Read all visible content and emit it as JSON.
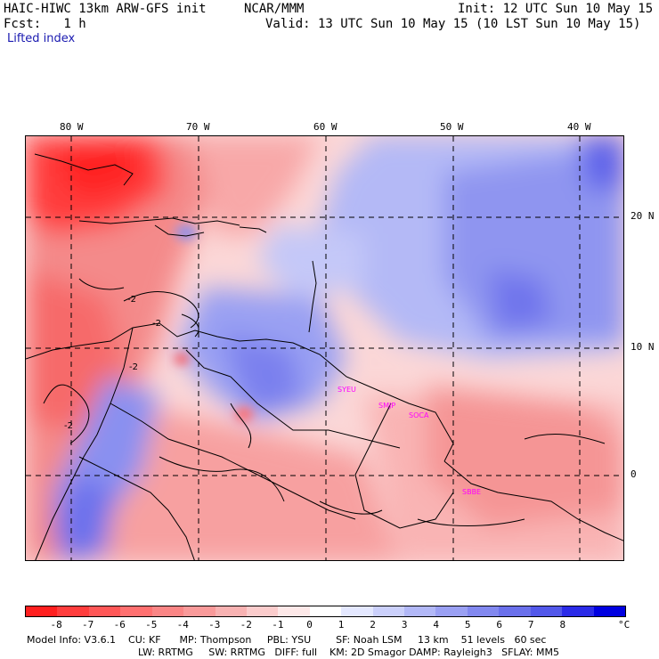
{
  "header": {
    "model_title": "HAIC-HIWC 13km ARW-GFS init",
    "org": "NCAR/MMM",
    "init_time": "Init: 12 UTC Sun 10 May 15",
    "fcst": "Fcst:   1 h",
    "valid_time": "Valid: 13 UTC Sun 10 May 15 (10 LST Sun 10 May 15)",
    "field_name": "Lifted index"
  },
  "map": {
    "lon_labels": [
      "80 W",
      "70 W",
      "60 W",
      "50 W",
      "40 W"
    ],
    "lat_labels": [
      "20 N",
      "10 N",
      "0"
    ],
    "contour_labels": [
      "-2",
      "-2",
      "-2",
      "-2"
    ],
    "station_labels": [
      "SYEU",
      "SMJP",
      "SOCA",
      "SBBE"
    ],
    "colors": {
      "strong_neg": "#ff2a2a",
      "neg": "#f89a9a",
      "near_zero": "#fde6e6",
      "pos": "#aab2f5",
      "strong_pos": "#6f72ee",
      "station_label": "#ff00ff",
      "contour": "#000000"
    }
  },
  "colorbar": {
    "unit": "°C",
    "ticks": [
      "-8",
      "-7",
      "-6",
      "-5",
      "-4",
      "-3",
      "-2",
      "-1",
      "0",
      "1",
      "2",
      "3",
      "4",
      "5",
      "6",
      "7",
      "8"
    ],
    "colors": [
      "#ff1f1f",
      "#ff3d3d",
      "#ff5757",
      "#ff7070",
      "#fa8585",
      "#f99a9a",
      "#f8b2b2",
      "#fbcccc",
      "#fde8e8",
      "#ffffff",
      "#e4e8ff",
      "#cbd0fb",
      "#b2b8f7",
      "#9aa0f3",
      "#8288ef",
      "#6a70eb",
      "#5258ea",
      "#2b2be8",
      "#0000e0"
    ]
  },
  "footer": {
    "line1": "Model Info: V3.6.1    CU: KF      MP: Thompson     PBL: YSU        SF: Noah LSM     13 km    51 levels   60 sec",
    "line2": "LW: RRTMG     SW: RRTMG   DIFF: full    KM: 2D Smagor DAMP: Rayleigh3   SFLAY: MM5"
  }
}
